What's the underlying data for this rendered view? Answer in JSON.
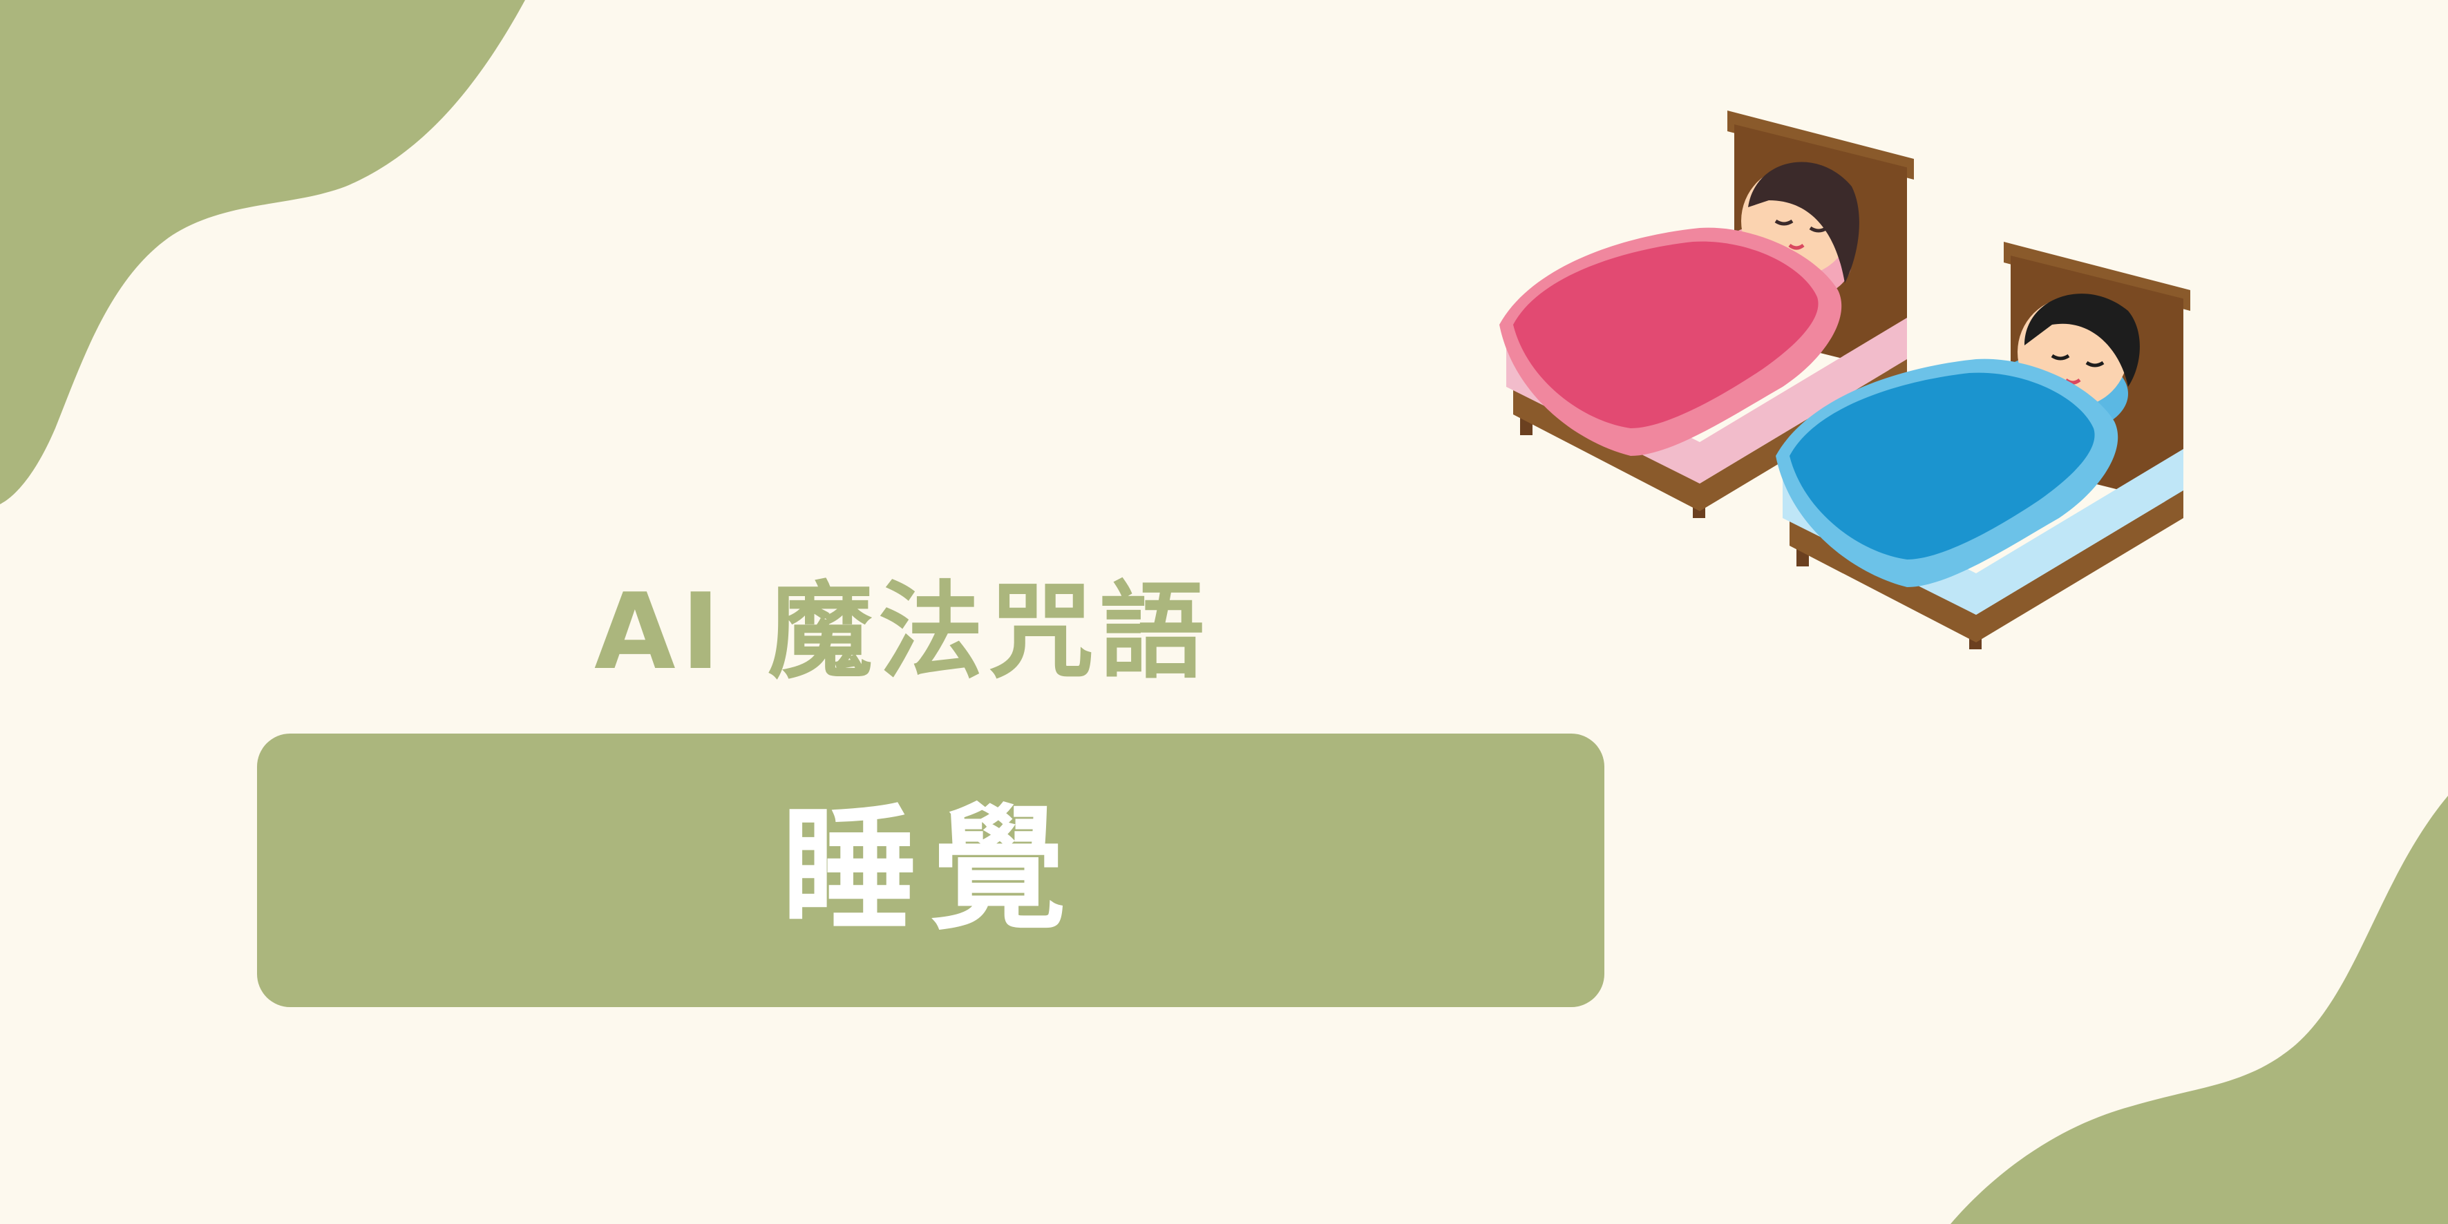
{
  "colors": {
    "background": "#fdf9ee",
    "accent": "#abb67d",
    "banner_text": "#ffffff"
  },
  "heading": "AI 魔法咒語",
  "banner": {
    "label": "睡覺"
  },
  "illustration": {
    "icon": "sleeping-kids-in-beds-illustration"
  }
}
